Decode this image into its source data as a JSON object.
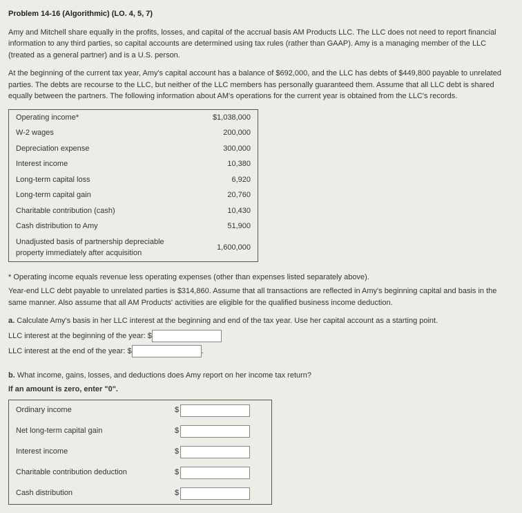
{
  "title": "Problem 14-16 (Algorithmic) (LO. 4, 5, 7)",
  "para1": "Amy and Mitchell share equally in the profits, losses, and capital of the accrual basis AM Products LLC. The LLC does not need to report financial information to any third parties, so capital accounts are determined using tax rules (rather than GAAP). Amy is a managing member of the LLC (treated as a general partner) and is a U.S. person.",
  "para2": "At the beginning of the current tax year, Amy's capital account has a balance of $692,000, and the LLC has debts of $449,800 payable to unrelated parties. The debts are recourse to the LLC, but neither of the LLC members has personally guaranteed them. Assume that all LLC debt is shared equally between the partners. The following information about AM's operations for the current year is obtained from the LLC's records.",
  "rows": [
    {
      "label": "Operating income*",
      "value": "$1,038,000"
    },
    {
      "label": "W-2 wages",
      "value": "200,000"
    },
    {
      "label": "Depreciation expense",
      "value": "300,000"
    },
    {
      "label": "Interest income",
      "value": "10,380"
    },
    {
      "label": "Long-term capital loss",
      "value": "6,920"
    },
    {
      "label": "Long-term capital gain",
      "value": "20,760"
    },
    {
      "label": "Charitable contribution (cash)",
      "value": "10,430"
    },
    {
      "label": "Cash distribution to Amy",
      "value": "51,900"
    },
    {
      "label": "Unadjusted basis of partnership depreciable property immediately after acquisition",
      "value": "1,600,000"
    }
  ],
  "footnote": "* Operating income equals revenue less operating expenses (other than expenses listed separately above).",
  "sub": "Year-end LLC debt payable to unrelated parties is $314,860. Assume that all transactions are reflected in Amy's beginning capital and basis in the same manner. Also assume that all AM Products' activities are eligible for the qualified business income deduction.",
  "a_prefix": "a.",
  "a_text": "Calculate Amy's basis in her LLC interest at the beginning and end of the tax year. Use her capital account as a starting point.",
  "a_line1": "LLC interest at the beginning of the year: $",
  "a_line2_pre": "LLC interest at the end of the year: $",
  "a_line2_post": ".",
  "b_prefix": "b.",
  "b_text": "What income, gains, losses, and deductions does Amy report on her income tax return?",
  "b_note": "If an amount is zero, enter \"0\".",
  "answers": [
    "Ordinary income",
    "Net long-term capital gain",
    "Interest income",
    "Charitable contribution deduction",
    "Cash distribution"
  ],
  "dollar": "$"
}
